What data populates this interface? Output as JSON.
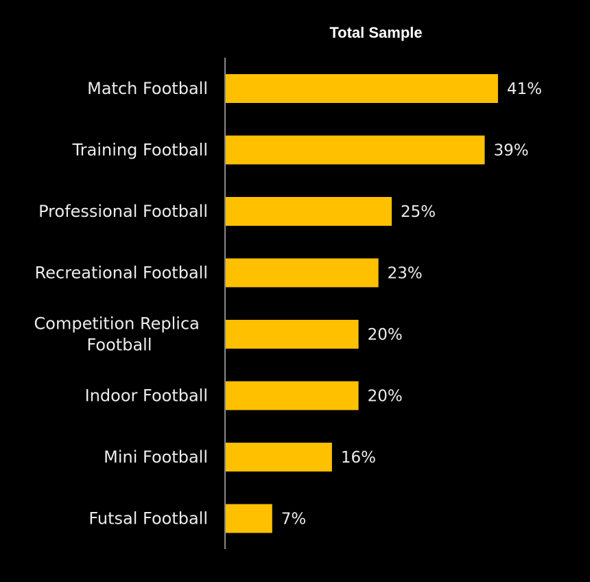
{
  "chart_data": {
    "type": "bar",
    "orientation": "horizontal",
    "title": "Total Sample",
    "categories": [
      "Match Football",
      "Training Football",
      "Professional Football",
      "Recreational Football",
      "Competition Replica Football",
      "Indoor Football",
      "Mini Football",
      "Futsal Football"
    ],
    "values": [
      41,
      39,
      25,
      23,
      20,
      20,
      16,
      7
    ],
    "value_labels": [
      "41%",
      "39%",
      "25%",
      "23%",
      "20%",
      "20%",
      "16%",
      "7%"
    ],
    "unit": "%",
    "xlim": [
      0,
      50
    ],
    "grid": false,
    "legend": "none",
    "colors": {
      "background": "#000000",
      "bar": "#FFC000",
      "text": "#ececec",
      "title": "#ffffff",
      "axis": "#888888"
    }
  }
}
